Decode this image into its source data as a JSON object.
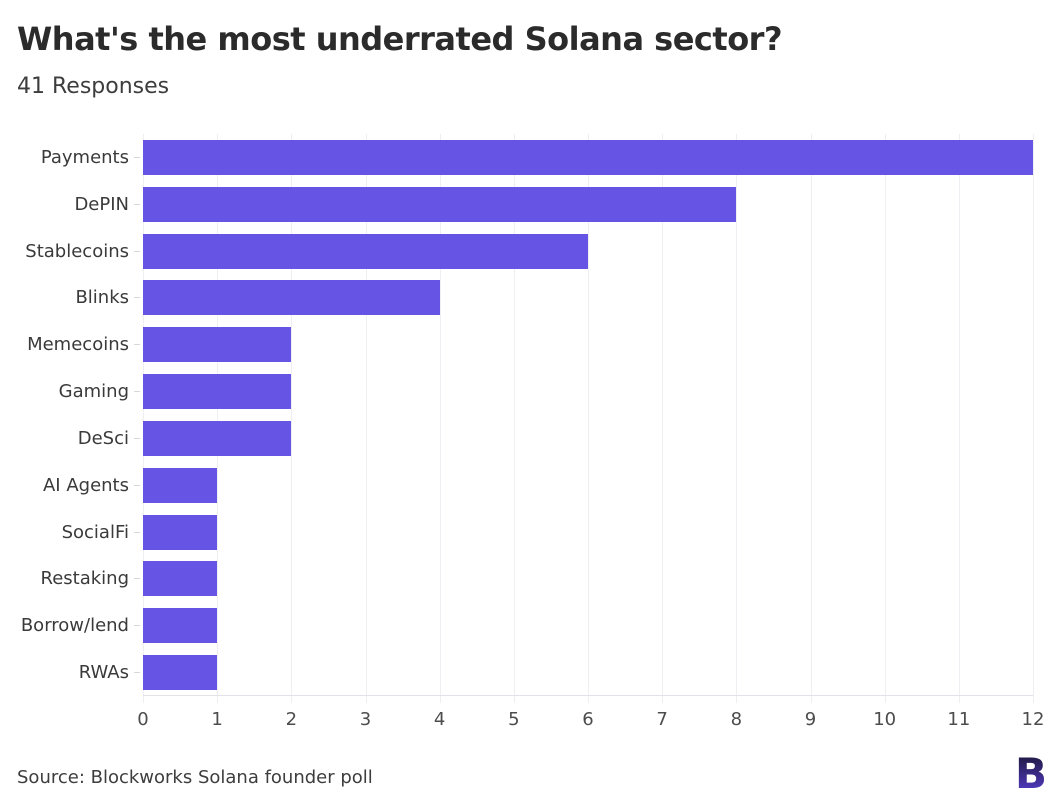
{
  "header": {
    "title": "What's the most underrated Solana sector?",
    "subtitle": "41 Responses"
  },
  "chart_data": {
    "type": "bar",
    "orientation": "horizontal",
    "title": "What's the most underrated Solana sector?",
    "subtitle": "41 Responses",
    "total_responses": 41,
    "categories": [
      "Payments",
      "DePIN",
      "Stablecoins",
      "Blinks",
      "Memecoins",
      "Gaming",
      "DeSci",
      "AI Agents",
      "SocialFi",
      "Restaking",
      "Borrow/lend",
      "RWAs"
    ],
    "values": [
      12,
      8,
      6,
      4,
      2,
      2,
      2,
      1,
      1,
      1,
      1,
      1
    ],
    "xlabel": "",
    "ylabel": "",
    "xlim": [
      0,
      12
    ],
    "xticks": [
      0,
      1,
      2,
      3,
      4,
      5,
      6,
      7,
      8,
      9,
      10,
      11,
      12
    ],
    "grid": "vertical",
    "legend": "none",
    "bar_color": "#6655e5"
  },
  "footer": {
    "source": "Source: Blockworks Solana founder poll",
    "logo": "blockworks-b-logo",
    "logo_letter": "B"
  },
  "colors": {
    "background": "#ffffff",
    "bar": "#6655e5",
    "gridline": "#efeef3",
    "axis_line": "#e3e2e9",
    "title_text": "#2b2b2b",
    "subtitle_text": "#3d3d3d",
    "label_text": "#3a3a3a",
    "tick_text": "#4c4c4c",
    "logo_gradient_top": "#17132d",
    "logo_gradient_bottom": "#5b40d9"
  }
}
